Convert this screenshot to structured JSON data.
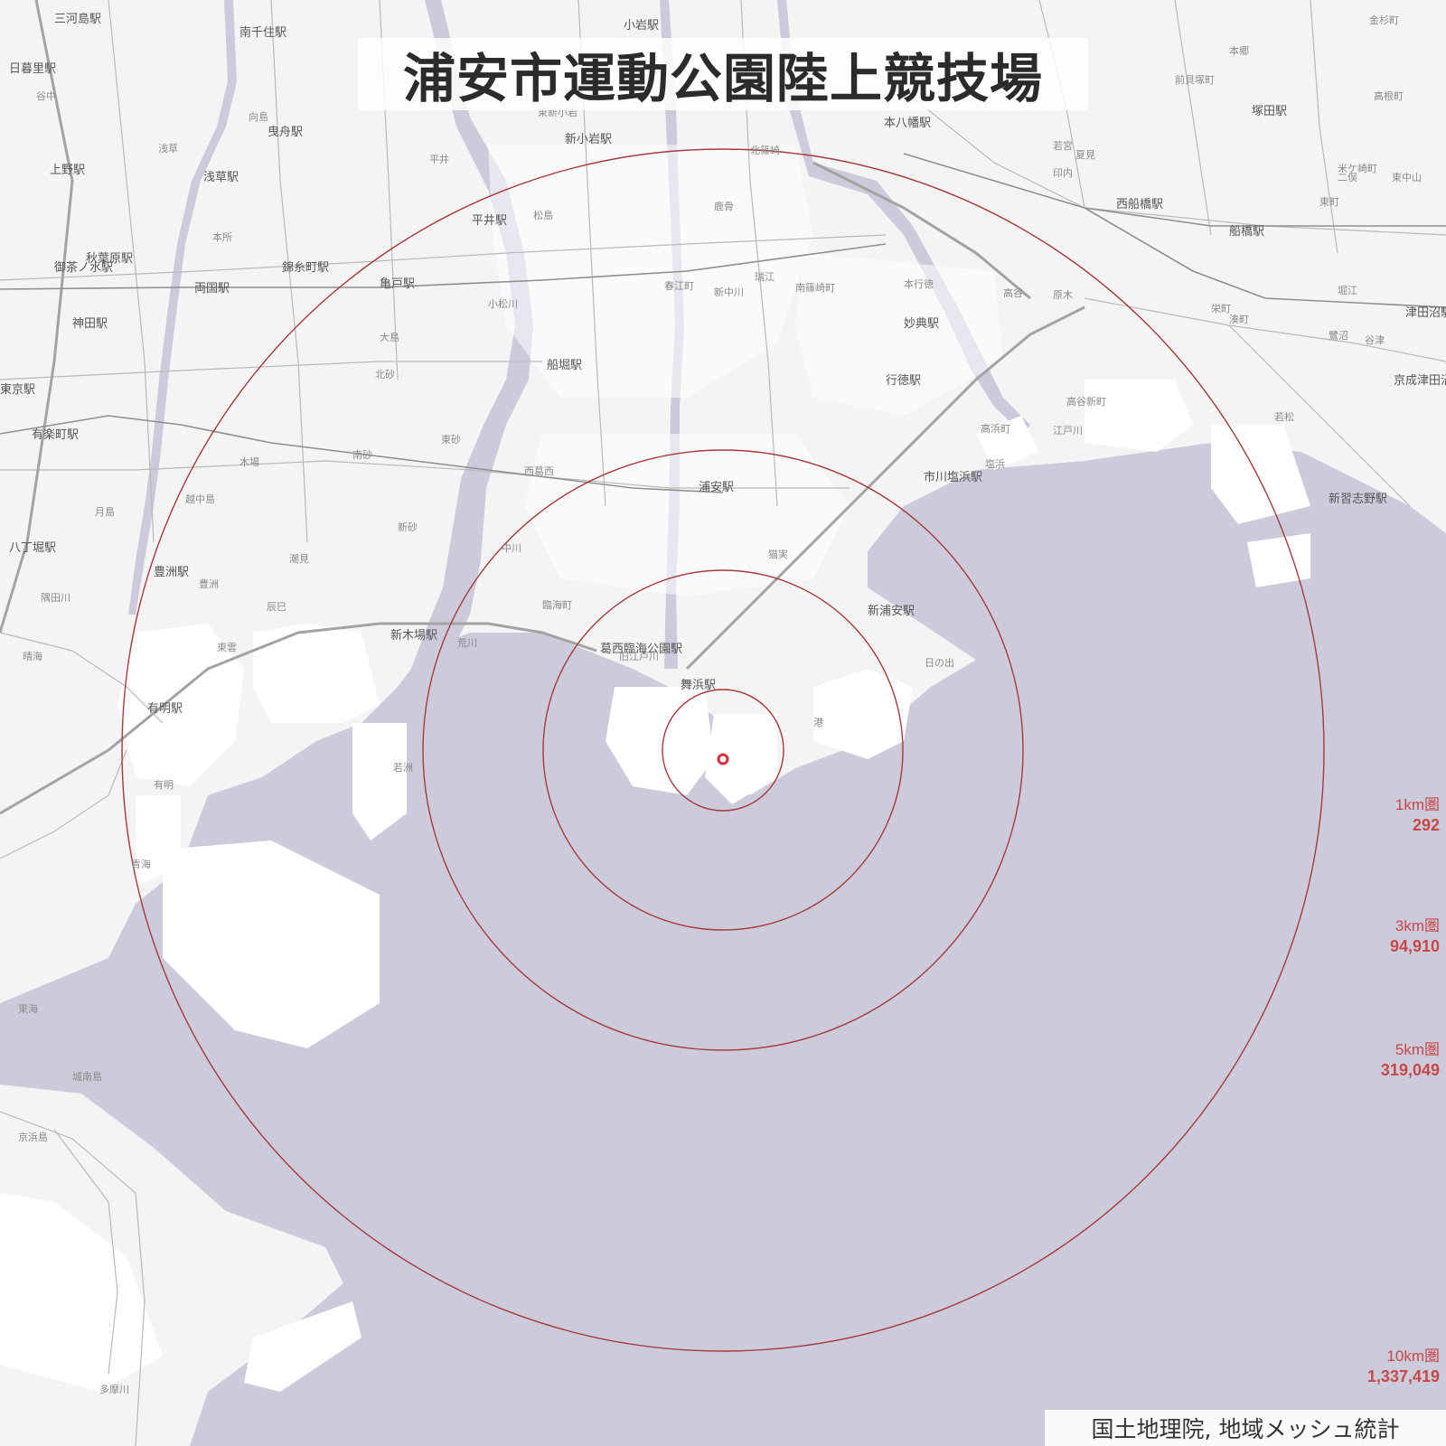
{
  "title": "浦安市運動公園陸上競技場",
  "attribution": "国土地理院, 地域メッシュ統計",
  "colors": {
    "land": "#f4f4f4",
    "developed_land": "#ffffff",
    "water": "#cccbdb",
    "ring": "#a63a3a",
    "center_marker": "#d0313b",
    "label_text": "#c84848"
  },
  "rings": [
    {
      "name": "1km圏",
      "population": "292"
    },
    {
      "name": "3km圏",
      "population": "94,910"
    },
    {
      "name": "5km圏",
      "population": "319,049"
    },
    {
      "name": "10km圏",
      "population": "1,337,419"
    }
  ],
  "stations": [
    "三河島駅",
    "南千住駅",
    "日暮里駅",
    "上野駅",
    "浅草駅",
    "秋葉原駅",
    "御茶ノ水駅",
    "神田駅",
    "両国駅",
    "錦糸町駅",
    "亀戸駅",
    "平井駅",
    "新小岩駅",
    "小岩駅",
    "本八幡駅",
    "西船橋駅",
    "船橋駅",
    "塚田駅",
    "津田沼駅",
    "京成津田沼駅",
    "新習志野駅",
    "市川塩浜駅",
    "行徳駅",
    "妙典駅",
    "浦安駅",
    "新浦安駅",
    "舞浜駅",
    "葛西臨海公園駅",
    "新木場駅",
    "船堀駅",
    "有明駅",
    "豊洲駅",
    "有楽町駅",
    "東京駅",
    "曳舟駅",
    "八丁堀駅"
  ],
  "districts": [
    "谷中",
    "向島",
    "浅草",
    "本所",
    "大島",
    "北砂",
    "南砂",
    "東砂",
    "木場",
    "越中島",
    "月島",
    "豊洲",
    "辰巳",
    "潮見",
    "新砂",
    "東雲",
    "有明",
    "青海",
    "若洲",
    "中川",
    "臨海町",
    "小松川",
    "松島",
    "西葛西",
    "猫実",
    "日の出",
    "港",
    "新中川",
    "瑞江",
    "春江町",
    "南篠崎町",
    "鹿骨",
    "北篠崎",
    "本行徳",
    "高谷",
    "原木",
    "高浜町",
    "塩浜",
    "高谷新町",
    "若松",
    "二俣",
    "栄町",
    "湊町",
    "東町",
    "城南島",
    "京浜島",
    "多摩川",
    "晴海",
    "東海",
    "堀江",
    "荒川",
    "旧江戸川",
    "江戸川",
    "隅田川",
    "東新小岩",
    "平井",
    "若宮",
    "印内",
    "夏見",
    "米ケ崎町",
    "高根町",
    "金杉町",
    "前貝塚町",
    "本郷",
    "東中山",
    "谷津",
    "鷺沼"
  ]
}
